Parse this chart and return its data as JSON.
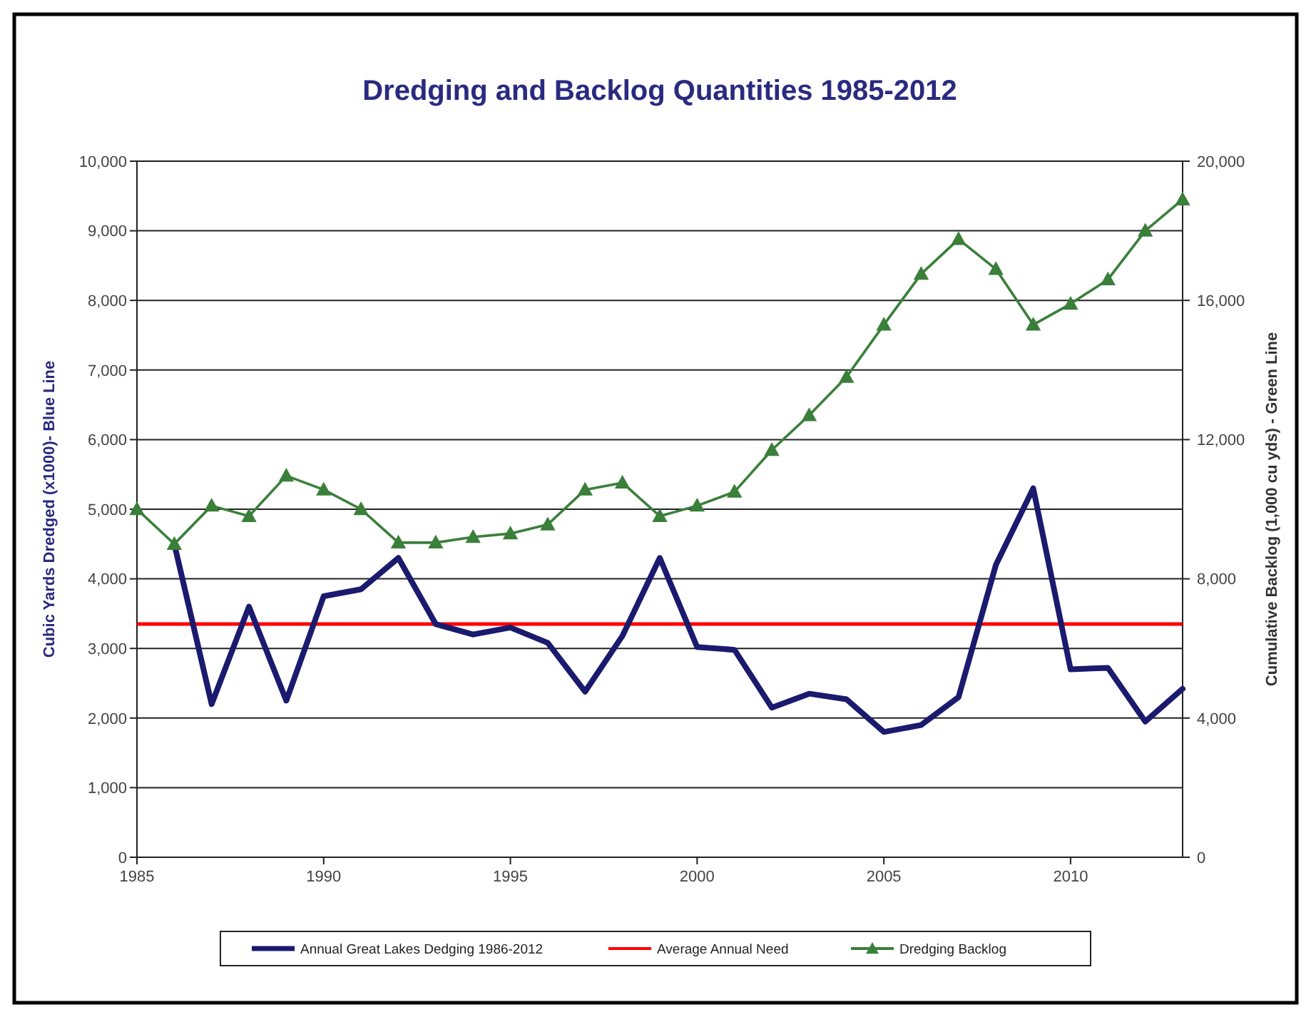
{
  "chart_data": {
    "type": "line",
    "title": "Dredging and Backlog Quantities 1985-2012",
    "ylabel": "Cubic Yards Dredged (x1000)- Blue Line",
    "y2label": "Cumulative Backlog (1,000 cu yds) - Green Line",
    "xlim": [
      1985,
      2013
    ],
    "xticks": [
      1985,
      1990,
      1995,
      2000,
      2005,
      2010
    ],
    "ylim": [
      0,
      10000
    ],
    "yticks": [
      {
        "value": 0,
        "label": "0"
      },
      {
        "value": 1000,
        "label": "1,000"
      },
      {
        "value": 2000,
        "label": "2,000"
      },
      {
        "value": 3000,
        "label": "3,000"
      },
      {
        "value": 4000,
        "label": "4,000"
      },
      {
        "value": 5000,
        "label": "5,000"
      },
      {
        "value": 6000,
        "label": "6,000"
      },
      {
        "value": 7000,
        "label": "7,000"
      },
      {
        "value": 8000,
        "label": "8,000"
      },
      {
        "value": 9000,
        "label": "9,000"
      },
      {
        "value": 10000,
        "label": "10,000"
      }
    ],
    "y2lim": [
      0,
      20000
    ],
    "y2ticks": [
      {
        "value": 0,
        "label": "0"
      },
      {
        "value": 4000,
        "label": "4,000"
      },
      {
        "value": 8000,
        "label": "8,000"
      },
      {
        "value": 12000,
        "label": "12,000"
      },
      {
        "value": 16000,
        "label": "16,000"
      },
      {
        "value": 20000,
        "label": "20,000"
      }
    ],
    "grid": "y",
    "legend": "bottom",
    "line_style": "solid",
    "series": [
      {
        "name": "Annual Great Lakes Dedging 1986-2012",
        "color": "#1a1a6e",
        "marker": "none",
        "x": [
          1986,
          1987,
          1988,
          1989,
          1990,
          1991,
          1992,
          1993,
          1994,
          1995,
          1996,
          1997,
          1998,
          1999,
          2000,
          2001,
          2002,
          2003,
          2004,
          2005,
          2006,
          2007,
          2008,
          2009,
          2010,
          2011,
          2012,
          2013
        ],
        "values": [
          4500,
          2200,
          3600,
          2250,
          3750,
          3850,
          4300,
          3350,
          3200,
          3300,
          3080,
          2380,
          3180,
          4300,
          3020,
          2980,
          2150,
          2350,
          2270,
          1800,
          1900,
          2300,
          4200,
          5300,
          2700,
          2720,
          1950,
          2420
        ]
      },
      {
        "name": "Dredging Backlog",
        "color": "#3a7f3a",
        "marker": "triangle",
        "axis": "y2",
        "x": [
          1985,
          1986,
          1987,
          1988,
          1989,
          1990,
          1991,
          1992,
          1993,
          1994,
          1995,
          1996,
          1997,
          1998,
          1999,
          2000,
          2001,
          2002,
          2003,
          2004,
          2005,
          2006,
          2007,
          2008,
          2009,
          2010,
          2011,
          2012,
          2013
        ],
        "values": [
          10000,
          9000,
          10100,
          9800,
          10960,
          10560,
          10000,
          9040,
          9040,
          9200,
          9300,
          9560,
          10560,
          10760,
          9800,
          10100,
          10500,
          11700,
          12700,
          13800,
          15300,
          16760,
          17760,
          16900,
          15300,
          15900,
          16600,
          18000,
          18900
        ]
      }
    ],
    "ref_lines": [
      {
        "axis": "y",
        "value": 3350,
        "label": "Average Annual Need",
        "color": "#ff0000"
      }
    ]
  }
}
